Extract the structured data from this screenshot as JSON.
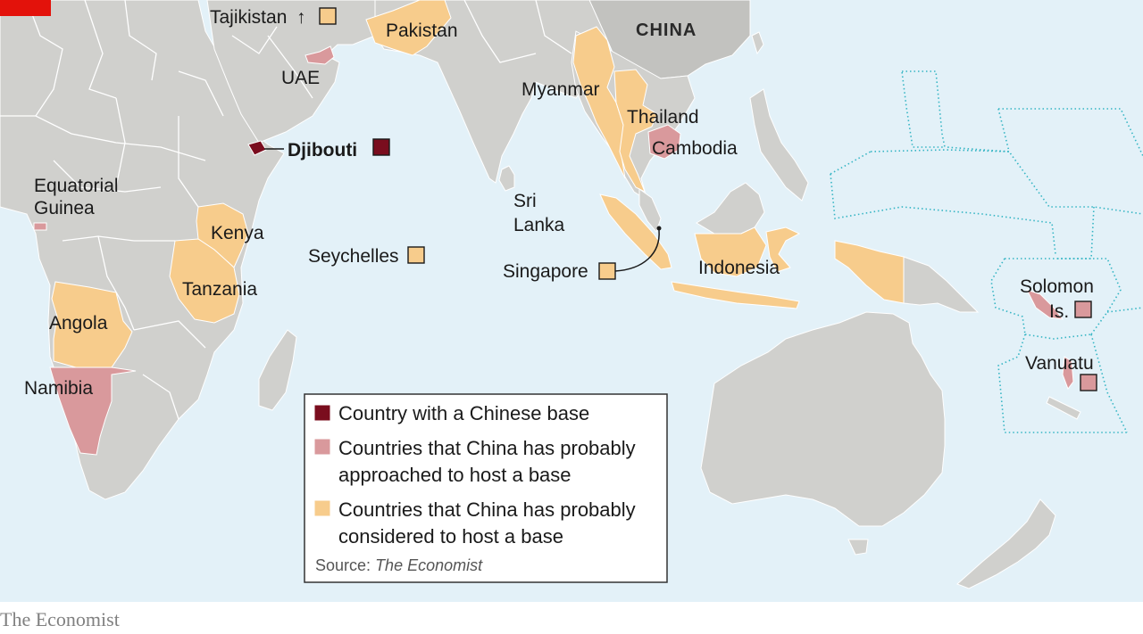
{
  "colors": {
    "sea": "#e3f1f8",
    "land": "#d0d0cd",
    "border": "#ffffff",
    "china_land": "#c2c2bf",
    "base": "#7a0d1e",
    "approached": "#d9999c",
    "considered": "#f7cc8c",
    "eez": "#35b5c4",
    "brand_red": "#e3120b"
  },
  "labels": {
    "tajikistan": "Tajikistan",
    "tajikistan_arrow": "↑",
    "pakistan": "Pakistan",
    "china": "CHINA",
    "uae": "UAE",
    "myanmar": "Myanmar",
    "thailand": "Thailand",
    "cambodia": "Cambodia",
    "djibouti": "Djibouti",
    "equatorial_guinea_1": "Equatorial",
    "equatorial_guinea_2": "Guinea",
    "sri_lanka_1": "Sri",
    "sri_lanka_2": "Lanka",
    "kenya": "Kenya",
    "seychelles": "Seychelles",
    "singapore": "Singapore",
    "indonesia": "Indonesia",
    "tanzania": "Tanzania",
    "solomon_1": "Solomon",
    "solomon_2": "Is.",
    "angola": "Angola",
    "vanuatu": "Vanuatu",
    "namibia": "Namibia"
  },
  "legend": {
    "items": [
      {
        "key": "base",
        "lines": [
          "Country with a Chinese base"
        ]
      },
      {
        "key": "approached",
        "lines": [
          "Countries that China has probably",
          "approached to host a base"
        ]
      },
      {
        "key": "considered",
        "lines": [
          "Countries that China has probably",
          "considered to host a base"
        ]
      }
    ],
    "source_prefix": "Source:",
    "source_name": "The Economist"
  },
  "footer": {
    "brand": "The Economist"
  }
}
